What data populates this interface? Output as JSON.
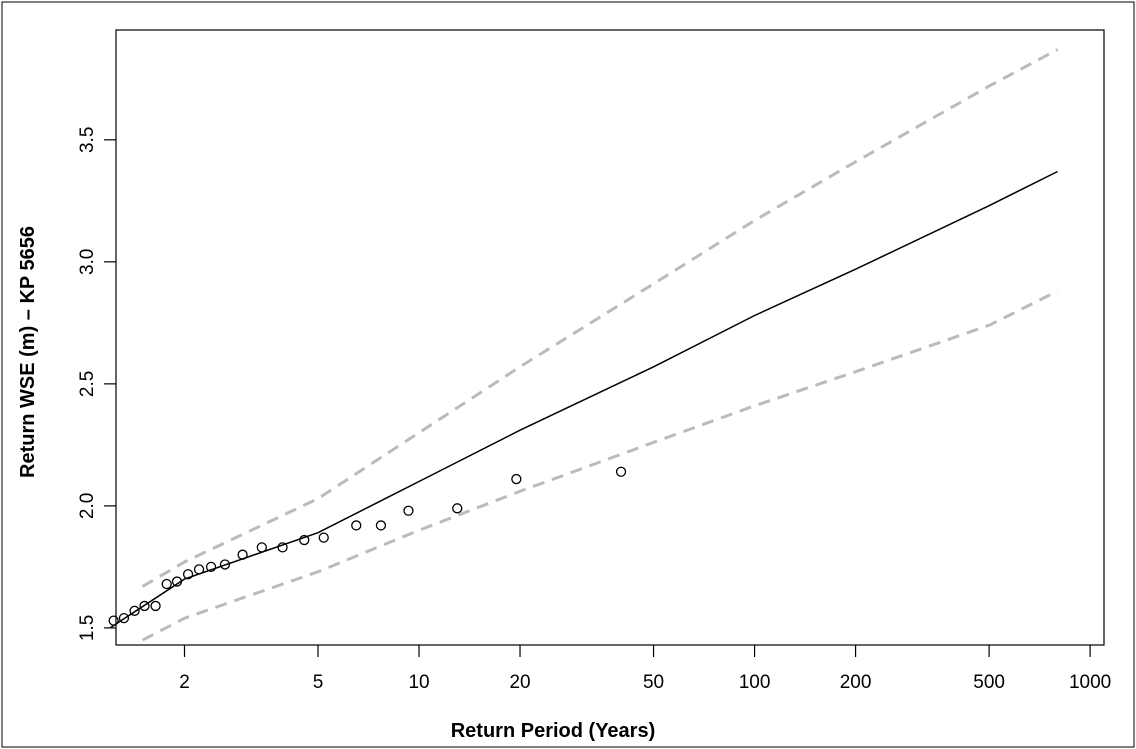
{
  "chart_data": {
    "type": "line",
    "title": "",
    "xlabel": "Return Period (Years)",
    "ylabel": "Return WSE (m) – KP 5656",
    "x_scale": "log",
    "xlim": [
      1.25,
      1100
    ],
    "ylim": [
      1.43,
      3.95
    ],
    "x_ticks": [
      2,
      5,
      10,
      20,
      50,
      100,
      200,
      500,
      1000
    ],
    "x_tick_labels": [
      "2",
      "5",
      "10",
      "20",
      "50",
      "100",
      "200",
      "500",
      "1000"
    ],
    "y_ticks": [
      1.5,
      2.0,
      2.5,
      3.0,
      3.5
    ],
    "y_tick_labels": [
      "1.5",
      "2.0",
      "2.5",
      "3.0",
      "3.5"
    ],
    "grid": false,
    "legend": "none",
    "colors": {
      "fit": "#000000",
      "confidence": "#bbbbbb",
      "observed": "#000000"
    },
    "series": [
      {
        "style": "solid-line",
        "x": [
          1.2,
          2,
          5,
          10,
          20,
          50,
          100,
          200,
          500,
          800
        ],
        "y": [
          1.5,
          1.7,
          1.89,
          2.1,
          2.31,
          2.57,
          2.78,
          2.97,
          3.23,
          3.37
        ]
      },
      {
        "style": "dashed-line",
        "x": [
          1.5,
          2,
          5,
          10,
          20,
          50,
          100,
          200,
          500,
          800
        ],
        "y": [
          1.67,
          1.77,
          2.03,
          2.3,
          2.57,
          2.91,
          3.17,
          3.41,
          3.72,
          3.87
        ]
      },
      {
        "style": "dashed-line",
        "x": [
          1.5,
          2,
          5,
          10,
          20,
          50,
          100,
          200,
          500,
          800
        ],
        "y": [
          1.45,
          1.54,
          1.73,
          1.9,
          2.06,
          2.26,
          2.41,
          2.55,
          2.74,
          2.88
        ]
      },
      {
        "style": "open-circles",
        "x": [
          1.23,
          1.32,
          1.42,
          1.52,
          1.64,
          1.77,
          1.9,
          2.05,
          2.21,
          2.4,
          2.64,
          2.98,
          3.4,
          3.92,
          4.55,
          5.2,
          6.5,
          7.7,
          9.3,
          13.0,
          19.5,
          40.0
        ],
        "y": [
          1.53,
          1.54,
          1.57,
          1.59,
          1.59,
          1.68,
          1.69,
          1.72,
          1.74,
          1.75,
          1.76,
          1.8,
          1.83,
          1.83,
          1.86,
          1.87,
          1.92,
          1.92,
          1.98,
          1.99,
          2.11,
          2.14
        ]
      }
    ]
  }
}
